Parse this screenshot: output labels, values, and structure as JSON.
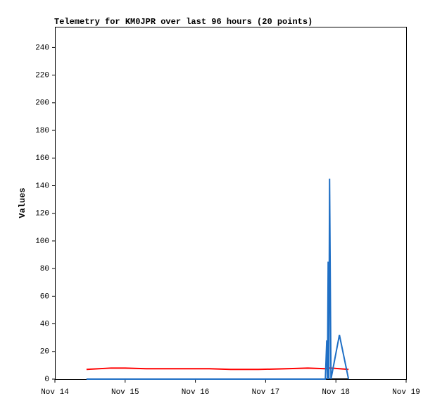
{
  "chart_data": {
    "type": "line",
    "title": "Telemetry for KM0JPR over last 96 hours (20 points)",
    "y_label": "Values",
    "x": [
      14.45,
      14.8,
      15.0,
      15.3,
      15.6,
      15.9,
      16.2,
      16.5,
      16.9,
      17.3,
      17.6,
      17.85,
      17.87,
      17.88,
      17.89,
      17.9,
      17.91,
      17.93,
      18.05,
      18.18
    ],
    "series": [
      {
        "color": "#ff0000",
        "values": [
          7,
          8,
          8,
          7.5,
          7.5,
          7.5,
          7.5,
          7,
          7,
          7.5,
          8,
          7.5,
          7.5,
          7.5,
          8,
          8,
          8,
          8,
          7.5,
          7
        ]
      },
      {
        "color": "#000000",
        "values": [
          0,
          0,
          0,
          0,
          0,
          0,
          0,
          0,
          0,
          0,
          0,
          0,
          0,
          0,
          0,
          0,
          0,
          0,
          0,
          0
        ]
      },
      {
        "color": "#1f6fc5",
        "values": [
          0,
          0,
          0,
          0,
          0,
          0,
          0,
          0,
          0,
          0,
          0,
          0,
          28,
          0,
          85,
          0,
          145,
          0,
          32,
          0
        ]
      }
    ],
    "xlim": [
      14,
      19
    ],
    "xticks": [
      {
        "value": 14,
        "label": "Nov 14"
      },
      {
        "value": 15,
        "label": "Nov 15"
      },
      {
        "value": 16,
        "label": "Nov 16"
      },
      {
        "value": 17,
        "label": "Nov 17"
      },
      {
        "value": 18,
        "label": "Nov 18"
      },
      {
        "value": 19,
        "label": "Nov 19"
      }
    ],
    "ylim": [
      0,
      255
    ],
    "yticks": [
      0,
      20,
      40,
      60,
      80,
      100,
      120,
      140,
      160,
      180,
      200,
      220,
      240
    ],
    "grid": false
  }
}
